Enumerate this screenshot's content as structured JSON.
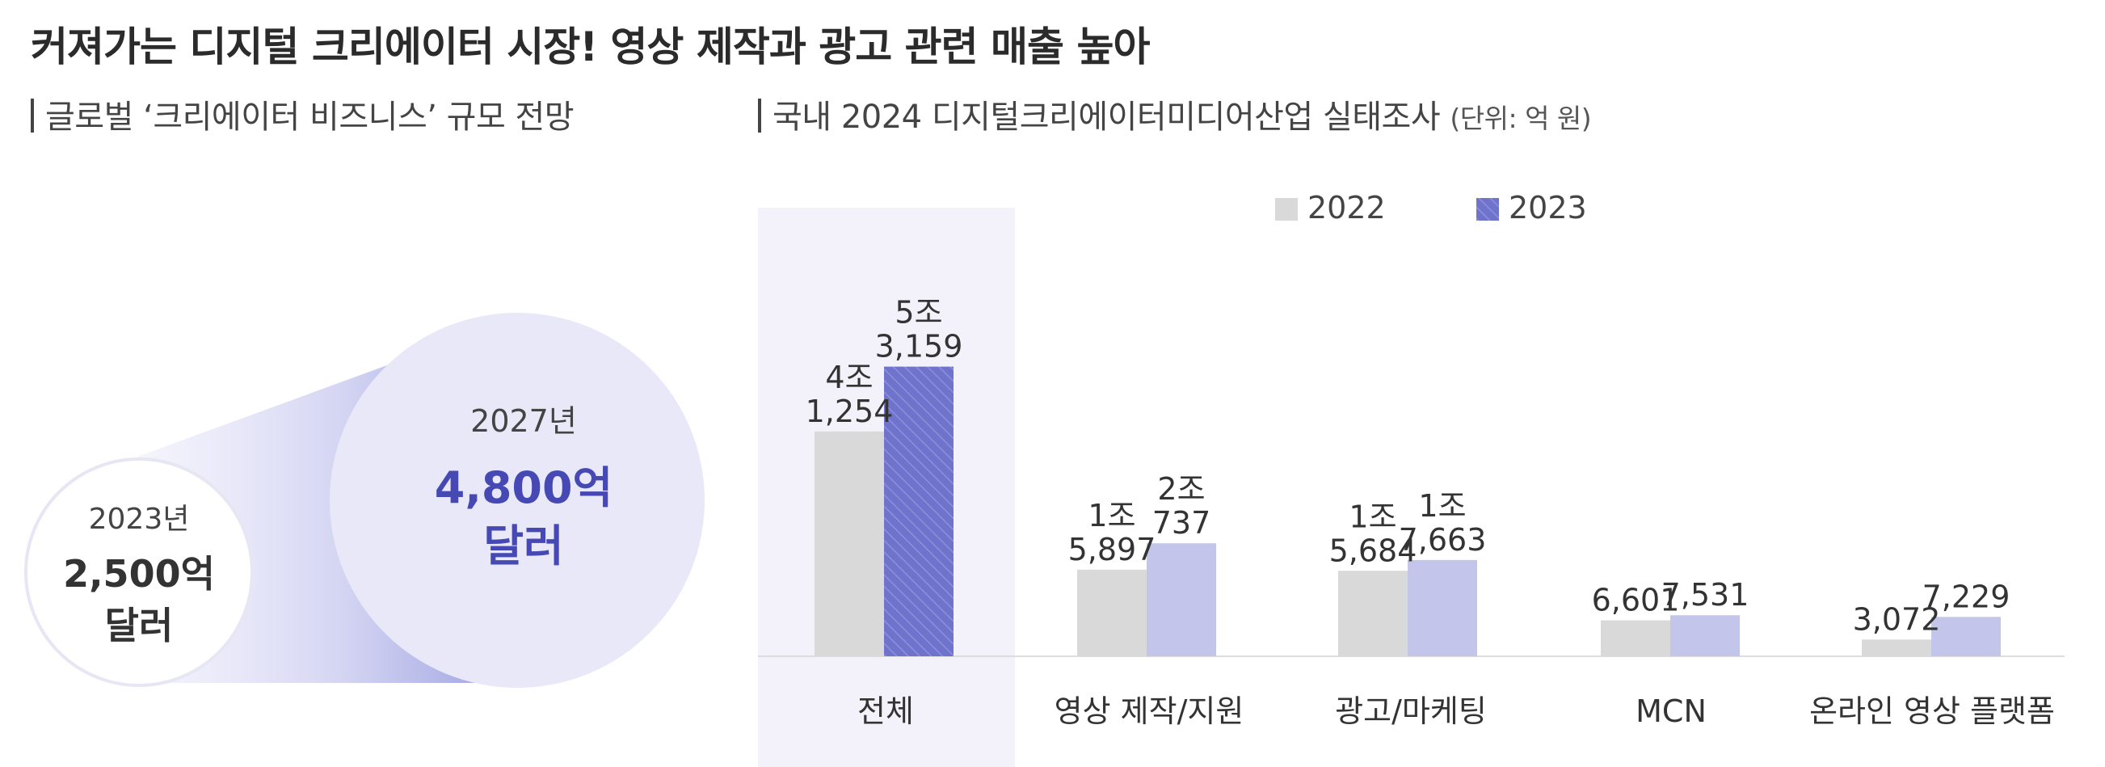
{
  "title": "커져가는 디지털 크리에이터 시장! 영상 제작과 광고 관련 매출 높아",
  "left_panel": {
    "subtitle": "글로벌 ‘크리에이터 비즈니스’ 규모 전망",
    "small_circle": {
      "year": "2023년",
      "value": "2,500억",
      "unit": "달러"
    },
    "big_circle": {
      "year": "2027년",
      "value": "4,800억",
      "unit": "달러"
    }
  },
  "right_panel": {
    "subtitle": "국내 2024 디지털크리에이터미디어산업 실태조사",
    "unit_note": "(단위: 억 원)"
  },
  "chart_data": {
    "type": "bar",
    "categories": [
      "전체",
      "영상 제작/지원",
      "광고/마케팅",
      "MCN",
      "온라인 영상 플랫폼"
    ],
    "series": [
      {
        "name": "2022",
        "values": [
          41254,
          15897,
          15684,
          6601,
          3072
        ],
        "labels": [
          [
            "4조",
            "1,254"
          ],
          [
            "1조",
            "5,897"
          ],
          [
            "1조",
            "5,684"
          ],
          [
            "6,601"
          ],
          [
            "3,072"
          ]
        ]
      },
      {
        "name": "2023",
        "values": [
          53159,
          20737,
          17663,
          7531,
          7229
        ],
        "labels": [
          [
            "5조",
            "3,159"
          ],
          [
            "2조",
            "737"
          ],
          [
            "1조",
            "7,663"
          ],
          [
            "7,531"
          ],
          [
            "7,229"
          ]
        ]
      }
    ],
    "highlight_category": "전체",
    "legend_position": "top-center",
    "grid": false,
    "ylim": [
      0,
      60000
    ],
    "colors": {
      "2022": "#d9d9d9",
      "2023": "#c3c5ea",
      "2023_highlight": "#6f73cc",
      "highlight_bg": "#f3f2fa",
      "axis": "#dddddd"
    }
  }
}
